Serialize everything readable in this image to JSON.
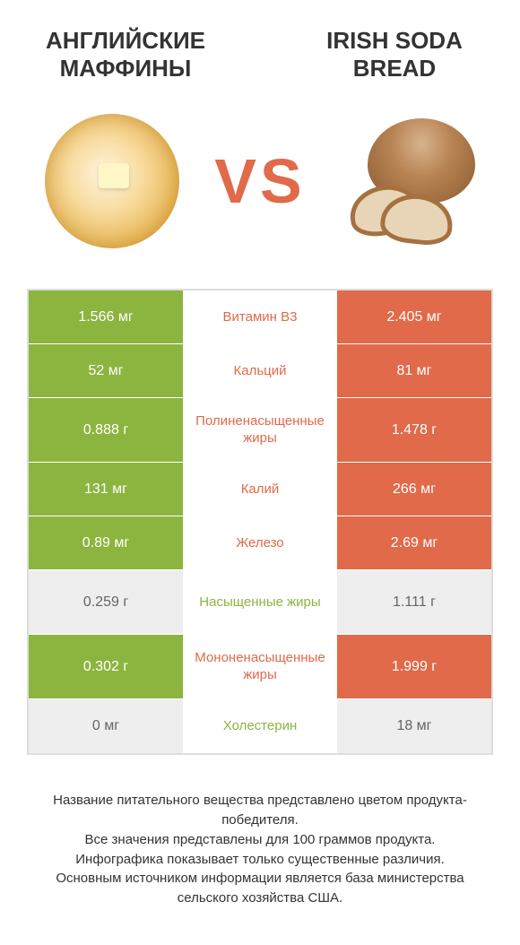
{
  "titles": {
    "left": "АНГЛИЙСКИЕ МАФФИНЫ",
    "right": "IRISH SODA BREAD",
    "vs": "VS"
  },
  "colors": {
    "left": "#8bb53f",
    "right": "#e06a4a",
    "grey": "#eeeeee",
    "border": "#dddddd",
    "text": "#333333"
  },
  "rows": [
    {
      "left": "1.566 мг",
      "label": "Витамин B3",
      "right": "2.405 мг",
      "winner": "right",
      "tall": false
    },
    {
      "left": "52 мг",
      "label": "Кальций",
      "right": "81 мг",
      "winner": "right",
      "tall": false
    },
    {
      "left": "0.888 г",
      "label": "Полиненасыщенные жиры",
      "right": "1.478 г",
      "winner": "right",
      "tall": true
    },
    {
      "left": "131 мг",
      "label": "Калий",
      "right": "266 мг",
      "winner": "right",
      "tall": false
    },
    {
      "left": "0.89 мг",
      "label": "Железо",
      "right": "2.69 мг",
      "winner": "right",
      "tall": false
    },
    {
      "left": "0.259 г",
      "label": "Насыщенные жиры",
      "right": "1.111 г",
      "winner": "left",
      "tall": true
    },
    {
      "left": "0.302 г",
      "label": "Мононенасыщенные жиры",
      "right": "1.999 г",
      "winner": "right",
      "tall": true
    },
    {
      "left": "0 мг",
      "label": "Холестерин",
      "right": "18 мг",
      "winner": "left",
      "tall": false
    }
  ],
  "footer": {
    "l1": "Название питательного вещества представлено цветом продукта-победителя.",
    "l2": "Все значения представлены для 100 граммов продукта.",
    "l3": "Инфографика показывает только существенные различия.",
    "l4": "Основным источником информации является база министерства сельского хозяйства США."
  }
}
